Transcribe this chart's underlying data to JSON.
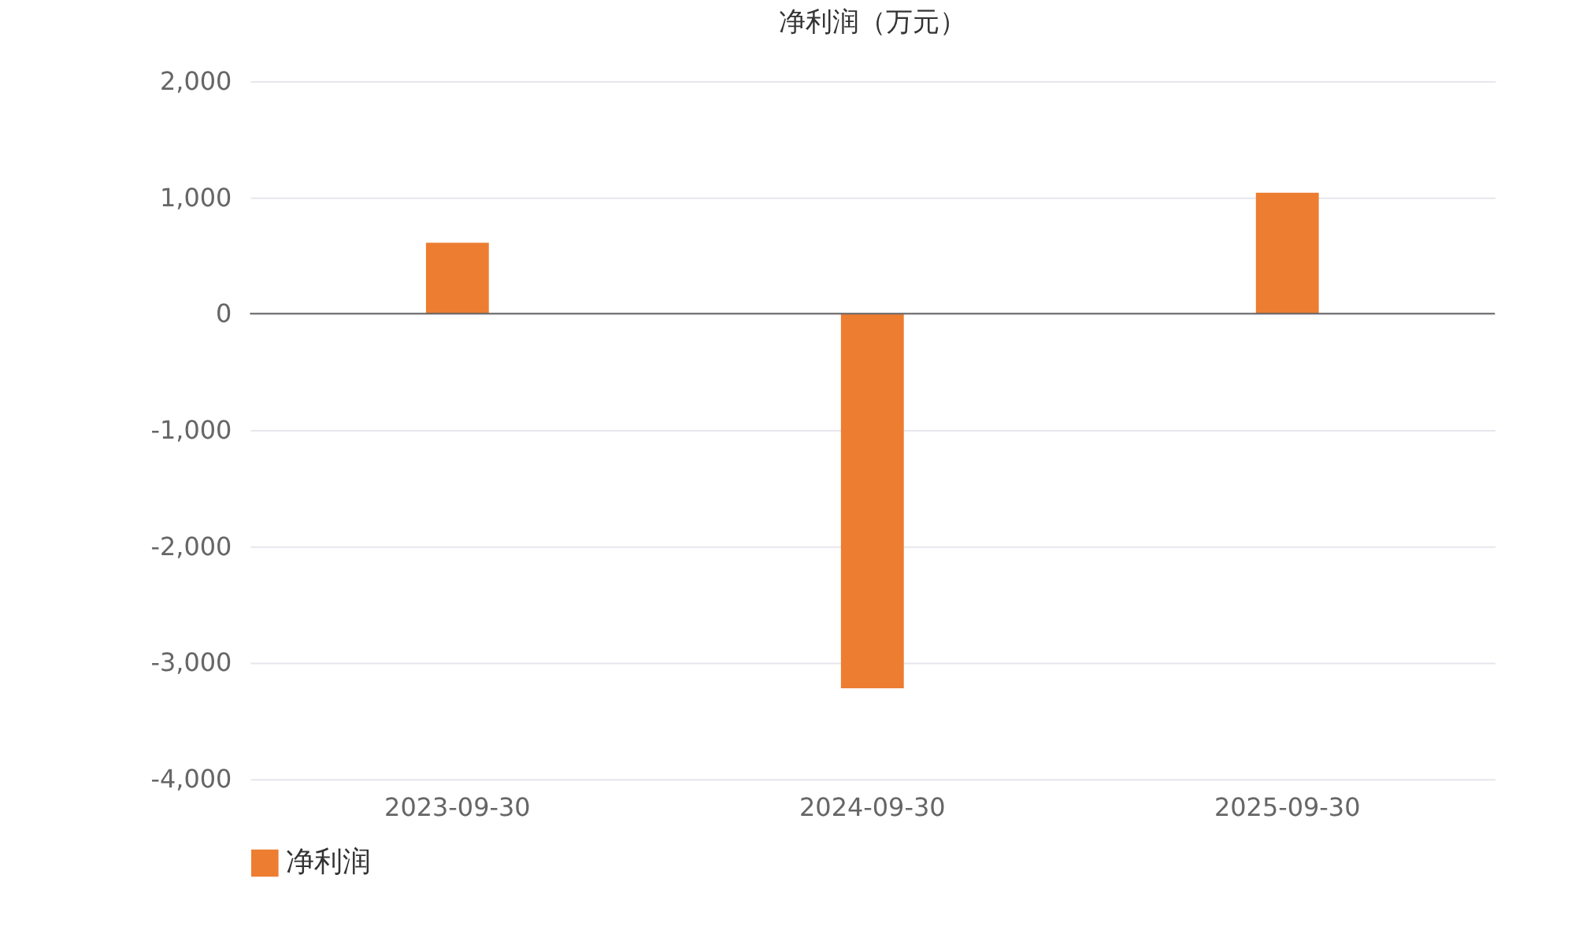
{
  "chart_data": {
    "type": "bar",
    "title": "净利润（万元）",
    "categories": [
      "2023-09-30",
      "2024-09-30",
      "2025-09-30"
    ],
    "series": [
      {
        "name": "净利润",
        "color": "#ed7d31",
        "values": [
          610,
          -3220,
          1040
        ]
      }
    ],
    "ylim": [
      -4000,
      2000
    ],
    "yticks": [
      {
        "value": -4000,
        "label": "-4,000"
      },
      {
        "value": -3000,
        "label": "-3,000"
      },
      {
        "value": -2000,
        "label": "-2,000"
      },
      {
        "value": -1000,
        "label": "-1,000"
      },
      0,
      {
        "value": 1000,
        "label": "1,000"
      },
      {
        "value": 2000,
        "label": "2,000"
      }
    ],
    "grid": "y",
    "legend": "bottom"
  }
}
